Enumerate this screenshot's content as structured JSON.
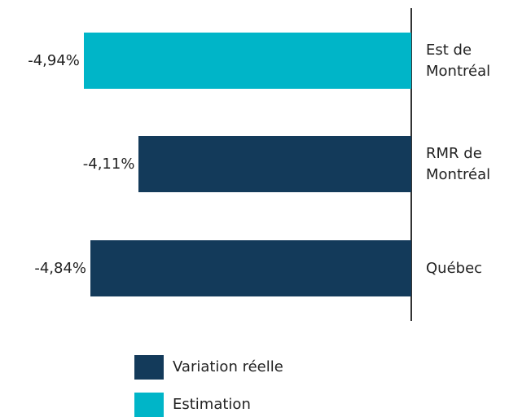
{
  "chart_data": {
    "type": "barh",
    "categories": [
      "Est de Montréal",
      "RMR de Montréal",
      "Québec"
    ],
    "series": [
      {
        "name": "Variation réelle",
        "color": "#133a5a",
        "values": [
          null,
          -4.11,
          -4.84
        ],
        "value_labels": [
          null,
          "-4,11%",
          "-4,84%"
        ]
      },
      {
        "name": "Estimation",
        "color": "#00b5c8",
        "values": [
          -4.94,
          null,
          null
        ],
        "value_labels": [
          "-4,94%",
          null,
          null
        ]
      }
    ]
  }
}
